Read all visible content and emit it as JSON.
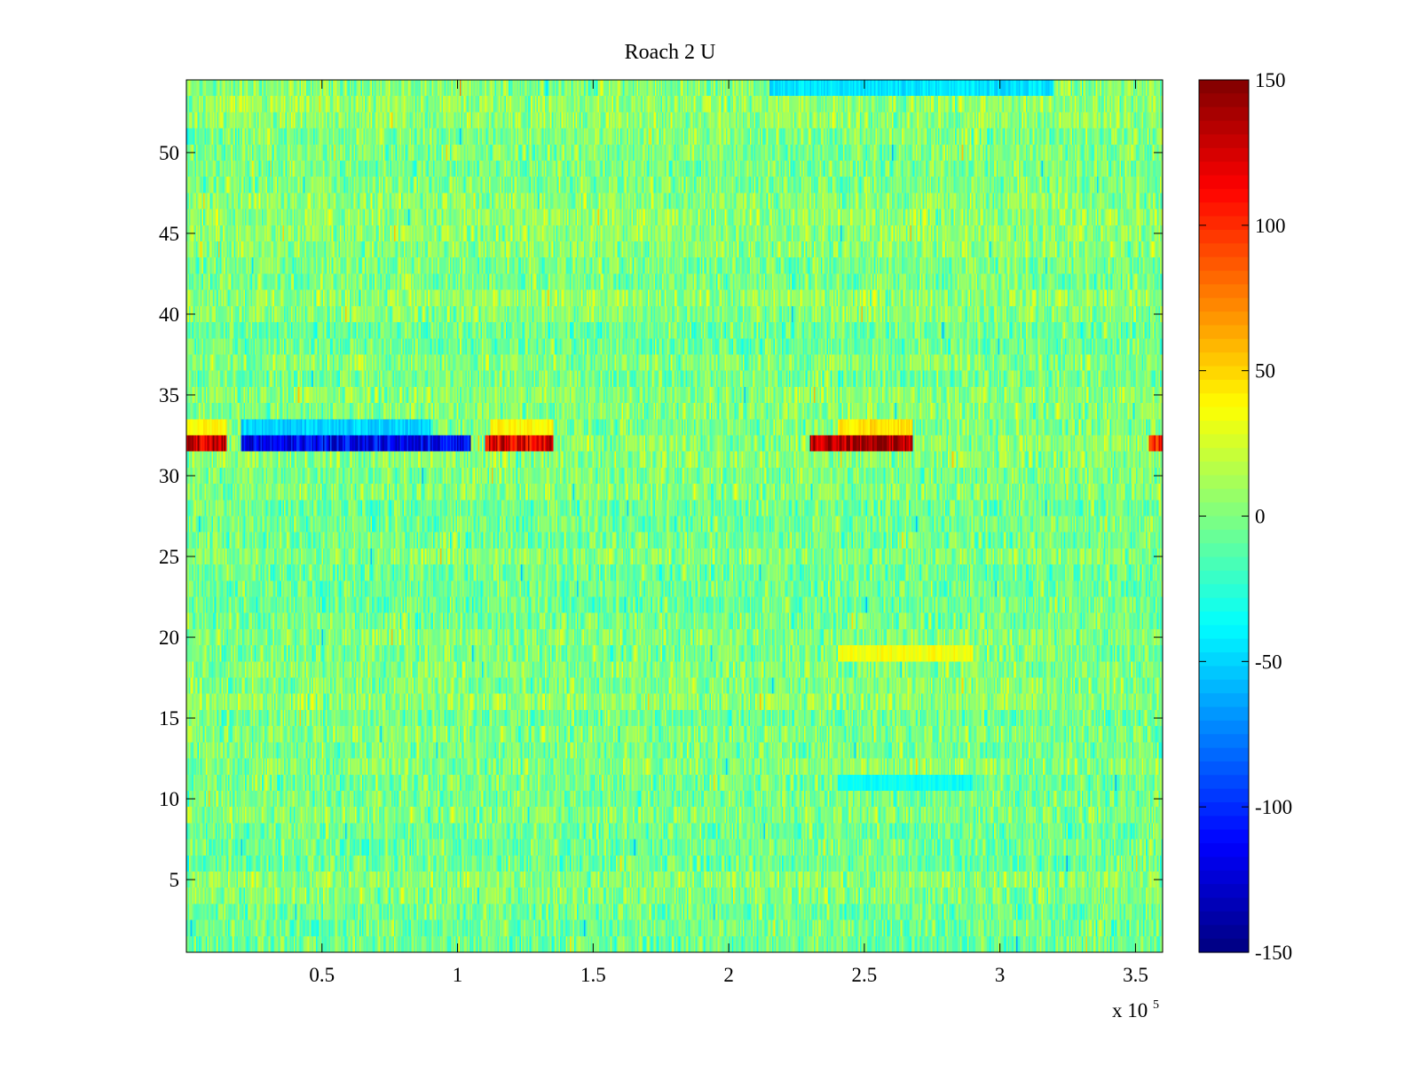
{
  "chart_data": {
    "type": "heatmap",
    "title": "Roach 2 U",
    "colormap": "jet",
    "xlabel": "",
    "ylabel": "",
    "xlim": [
      0,
      360000
    ],
    "ylim": [
      0.5,
      54.5
    ],
    "x_ticks": [
      50000,
      100000,
      150000,
      200000,
      250000,
      300000,
      350000
    ],
    "x_tick_labels": [
      "0.5",
      "1",
      "1.5",
      "2",
      "2.5",
      "3",
      "3.5"
    ],
    "x_exponent_label": {
      "prefix": "x 10",
      "power": "5"
    },
    "y_ticks": [
      5,
      10,
      15,
      20,
      25,
      30,
      35,
      40,
      45,
      50
    ],
    "y_tick_labels": [
      "5",
      "10",
      "15",
      "20",
      "25",
      "30",
      "35",
      "40",
      "45",
      "50"
    ],
    "rows": 54,
    "background_value_range": [
      -40,
      40
    ],
    "colorbar": {
      "clim": [
        -150,
        150
      ],
      "ticks": [
        150,
        100,
        50,
        0,
        -50,
        -100,
        -150
      ],
      "tick_labels": [
        "150",
        "100",
        "50",
        "0",
        "-50",
        "-100",
        "-150"
      ]
    },
    "features": [
      {
        "row": 32,
        "x_range": [
          0,
          15000
        ],
        "value": 130,
        "label": "strong positive segment"
      },
      {
        "row": 32,
        "x_range": [
          20000,
          105000
        ],
        "value": -115,
        "label": "strong negative segment"
      },
      {
        "row": 32,
        "x_range": [
          110000,
          135000
        ],
        "value": 120,
        "label": "strong positive segment"
      },
      {
        "row": 32,
        "x_range": [
          230000,
          268000
        ],
        "value": 140,
        "label": "strong positive segment"
      },
      {
        "row": 32,
        "x_range": [
          355000,
          360000
        ],
        "value": 110,
        "label": "strong positive segment"
      },
      {
        "row": 33,
        "x_range": [
          0,
          15000
        ],
        "value": 40,
        "label": "moderate positive"
      },
      {
        "row": 33,
        "x_range": [
          20000,
          90000
        ],
        "value": -50,
        "label": "moderate negative"
      },
      {
        "row": 33,
        "x_range": [
          112000,
          135000
        ],
        "value": 40,
        "label": "moderate positive"
      },
      {
        "row": 33,
        "x_range": [
          240000,
          268000
        ],
        "value": 45,
        "label": "moderate positive"
      },
      {
        "row": 54,
        "x_range": [
          215000,
          320000
        ],
        "value": -45,
        "label": "moderate negative"
      },
      {
        "row": 19,
        "x_range": [
          240000,
          290000
        ],
        "value": 35,
        "label": "mild positive"
      },
      {
        "row": 11,
        "x_range": [
          240000,
          290000
        ],
        "value": -35,
        "label": "mild negative"
      }
    ]
  }
}
